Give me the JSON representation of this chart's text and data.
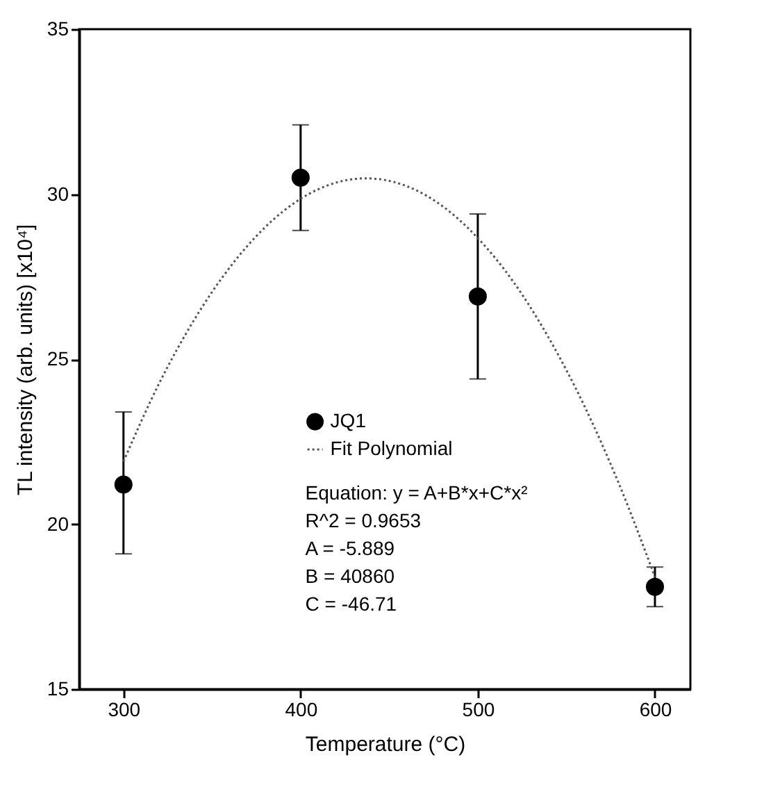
{
  "chart_data": {
    "type": "scatter",
    "xlabel": "Temperature (°C)",
    "ylabel": "TL intensity (arb. units) [x10⁴]",
    "xlim": [
      275,
      620
    ],
    "xticks": [
      300,
      400,
      500,
      600
    ],
    "ylim": [
      15,
      35
    ],
    "yticks": [
      15,
      20,
      25,
      30,
      35
    ],
    "grid": false,
    "legend": "bottom",
    "series": [
      {
        "name": "JQ1",
        "type": "scatter",
        "marker": "circle",
        "color": "#000000",
        "x": [
          300,
          400,
          500,
          600
        ],
        "values": [
          21.2,
          30.5,
          26.9,
          18.1
        ],
        "errors": [
          [
            19.1,
            23.4
          ],
          [
            28.9,
            32.1
          ],
          [
            24.4,
            29.4
          ],
          [
            17.5,
            18.7
          ]
        ]
      },
      {
        "name": "Fit Polynomial",
        "type": "line",
        "marker": "none",
        "line_style": "dotted",
        "color": "#555555",
        "x": [
          300,
          320,
          340,
          360,
          380,
          400,
          420,
          437,
          460,
          480,
          500,
          520,
          540,
          560,
          580,
          600
        ],
        "values": [
          21.9,
          24.25,
          26.2,
          27.78,
          29.0,
          29.86,
          30.35,
          30.48,
          30.24,
          29.64,
          28.67,
          27.35,
          25.65,
          23.6,
          21.18,
          18.4
        ]
      }
    ],
    "annotations": [
      "Equation: y = A+B*x+C*x²",
      "R^2 = 0.9653",
      "A = -5.889",
      "B = 40860",
      "C = -46.71"
    ]
  }
}
